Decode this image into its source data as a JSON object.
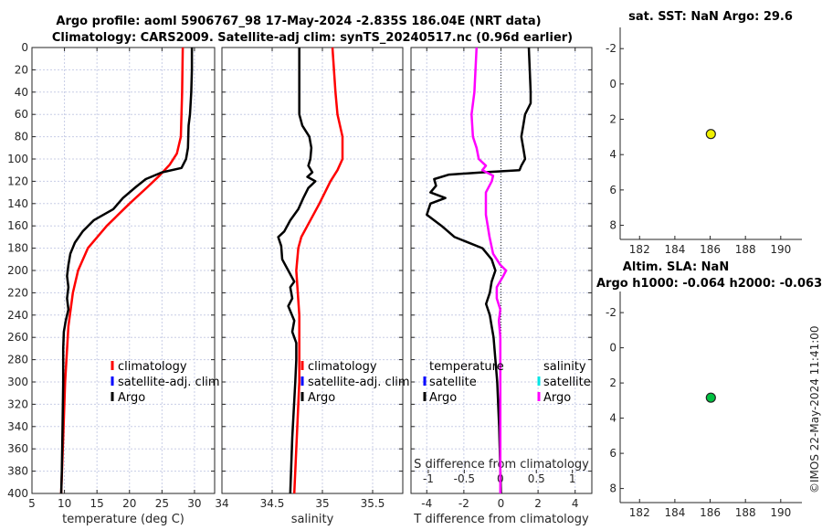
{
  "title_line1": "Argo profile: aoml 5906767_98 17-May-2024 -2.835S 186.04E (NRT data)",
  "title_line2": "Climatology: CARS2009. Satellite-adj clim: synTS_20240517.nc (0.96d earlier)",
  "sst_title": "sat. SST: NaN Argo: 29.6",
  "sla_title1": "Altim. SLA: NaN",
  "sla_title2": "Argo h1000: -0.064 h2000: -0.063",
  "copyright": "©IMOS 22-May-2024 11:41:00",
  "colors": {
    "climatology": "#ff0000",
    "satellite_adj": "#0000ff",
    "argo": "#000000",
    "sal_sat": "#00e5e5",
    "sal_argo": "#ff00ff",
    "sst_dot": "#f0f000",
    "sla_dot": "#00c040"
  },
  "chart_data": [
    {
      "type": "line",
      "id": "temperature",
      "xlabel": "temperature (deg C)",
      "ylabel": "",
      "xlim": [
        5,
        33.1
      ],
      "ylim": [
        400,
        0
      ],
      "xticks": [
        5,
        10,
        15,
        20,
        25,
        30
      ],
      "yticks": [
        0,
        20,
        40,
        60,
        80,
        100,
        120,
        140,
        160,
        180,
        200,
        220,
        240,
        260,
        280,
        300,
        320,
        340,
        360,
        380,
        400
      ],
      "show_ytick_labels": true,
      "grid": true,
      "legend": [
        "climatology",
        "satellite-adj. clim",
        "Argo"
      ],
      "series": [
        {
          "name": "climatology",
          "color": "#ff0000",
          "depth": [
            0,
            40,
            80,
            95,
            105,
            115,
            125,
            140,
            160,
            180,
            200,
            220,
            250,
            300,
            350,
            400
          ],
          "values": [
            28.2,
            28.1,
            27.9,
            27.3,
            26.2,
            24.6,
            22.8,
            20.0,
            16.5,
            13.6,
            12.1,
            11.3,
            10.6,
            10.1,
            9.8,
            9.5
          ]
        },
        {
          "name": "Argo",
          "color": "#000000",
          "depth": [
            0,
            20,
            40,
            60,
            70,
            90,
            100,
            108,
            112,
            118,
            125,
            135,
            145,
            155,
            165,
            175,
            185,
            195,
            205,
            215,
            225,
            235,
            245,
            255,
            270,
            300,
            340,
            380,
            400
          ],
          "values": [
            29.6,
            29.6,
            29.5,
            29.3,
            29.1,
            29.0,
            28.7,
            28.0,
            25.0,
            22.5,
            21.0,
            19.0,
            17.5,
            14.5,
            12.8,
            11.6,
            10.9,
            10.6,
            10.4,
            10.6,
            10.4,
            10.6,
            10.2,
            9.9,
            9.8,
            9.8,
            9.7,
            9.6,
            9.5
          ]
        }
      ]
    },
    {
      "type": "line",
      "id": "salinity",
      "xlabel": "salinity",
      "ylabel": "",
      "xlim": [
        34,
        35.8
      ],
      "ylim": [
        400,
        0
      ],
      "xticks": [
        34,
        34.5,
        35,
        35.5
      ],
      "yticks": [
        0,
        20,
        40,
        60,
        80,
        100,
        120,
        140,
        160,
        180,
        200,
        220,
        240,
        260,
        280,
        300,
        320,
        340,
        360,
        380,
        400
      ],
      "show_ytick_labels": false,
      "grid": true,
      "legend": [
        "climatology",
        "satellite-adj. clim",
        "Argo"
      ],
      "series": [
        {
          "name": "climatology",
          "color": "#ff0000",
          "depth": [
            0,
            40,
            60,
            80,
            100,
            110,
            120,
            140,
            160,
            170,
            180,
            200,
            240,
            300,
            400
          ],
          "values": [
            35.1,
            35.13,
            35.15,
            35.2,
            35.2,
            35.15,
            35.08,
            34.97,
            34.85,
            34.79,
            34.76,
            34.74,
            34.77,
            34.77,
            34.72
          ]
        },
        {
          "name": "Argo",
          "color": "#000000",
          "depth": [
            0,
            40,
            60,
            70,
            80,
            90,
            100,
            106,
            112,
            116,
            120,
            126,
            135,
            145,
            155,
            165,
            170,
            178,
            190,
            200,
            210,
            215,
            225,
            232,
            245,
            255,
            265,
            280,
            300,
            350,
            400
          ],
          "values": [
            34.77,
            34.77,
            34.77,
            34.8,
            34.87,
            34.89,
            34.88,
            34.86,
            34.9,
            34.85,
            34.93,
            34.86,
            34.81,
            34.76,
            34.68,
            34.62,
            34.56,
            34.59,
            34.6,
            34.66,
            34.72,
            34.68,
            34.7,
            34.66,
            34.72,
            34.7,
            34.74,
            34.74,
            34.73,
            34.7,
            34.68
          ]
        }
      ]
    },
    {
      "type": "line",
      "id": "difference",
      "xlabel": "T difference from climatology",
      "x2label": "S difference from climatology",
      "xlim": [
        -4.85,
        4.9
      ],
      "x2lim": [
        -1.24,
        1.27
      ],
      "ylim": [
        400,
        0
      ],
      "xticks": [
        -4,
        -2,
        0,
        2,
        4
      ],
      "x2ticks": [
        -1,
        -0.5,
        0,
        0.5,
        1
      ],
      "yticks": [
        0,
        20,
        40,
        60,
        80,
        100,
        120,
        140,
        160,
        180,
        200,
        220,
        240,
        260,
        280,
        300,
        320,
        340,
        360,
        380,
        400
      ],
      "show_ytick_labels": false,
      "grid": true,
      "legend_headers": [
        "temperature",
        "salinity"
      ],
      "legend": [
        "satellite",
        "Argo",
        "satellite",
        "Argo"
      ],
      "series": [
        {
          "name": "T Argo",
          "axis": "x",
          "color": "#000000",
          "depth": [
            0,
            40,
            50,
            60,
            70,
            80,
            90,
            100,
            106,
            110,
            112,
            114,
            118,
            124,
            130,
            135,
            140,
            145,
            150,
            160,
            170,
            180,
            190,
            200,
            210,
            220,
            230,
            240,
            250,
            260,
            280,
            300,
            340,
            400
          ],
          "values": [
            1.5,
            1.6,
            1.6,
            1.3,
            1.2,
            1.1,
            1.2,
            1.3,
            1.1,
            1.0,
            -1.0,
            -2.8,
            -3.6,
            -3.5,
            -3.8,
            -3.0,
            -3.8,
            -3.9,
            -4.0,
            -3.2,
            -2.5,
            -1.0,
            -0.5,
            -0.3,
            -0.5,
            -0.6,
            -0.8,
            -0.6,
            -0.5,
            -0.4,
            -0.3,
            -0.2,
            -0.1,
            0.0
          ]
        },
        {
          "name": "S Argo",
          "axis": "x2",
          "color": "#ff00ff",
          "depth": [
            0,
            40,
            60,
            80,
            90,
            100,
            106,
            110,
            115,
            120,
            130,
            150,
            170,
            185,
            195,
            200,
            205,
            215,
            225,
            235,
            245,
            260,
            300,
            400
          ],
          "values": [
            -0.33,
            -0.36,
            -0.4,
            -0.38,
            -0.33,
            -0.3,
            -0.2,
            -0.25,
            -0.1,
            -0.12,
            -0.2,
            -0.2,
            -0.15,
            -0.1,
            0.0,
            0.08,
            0.04,
            -0.05,
            -0.05,
            0.0,
            -0.02,
            0.0,
            0.0,
            0.0
          ]
        }
      ]
    },
    {
      "type": "scatter",
      "id": "sst",
      "xlim": [
        180.9,
        191.2
      ],
      "ylim": [
        -3.2,
        8.8
      ],
      "xticks": [
        182,
        184,
        186,
        188,
        190
      ],
      "yticks": [
        -2,
        0,
        2,
        4,
        6,
        8
      ],
      "points": [
        {
          "x": 186.04,
          "y": -2.835,
          "plot_y": 2.835,
          "color": "#f0f000"
        }
      ]
    },
    {
      "type": "scatter",
      "id": "sla",
      "xlim": [
        180.9,
        191.2
      ],
      "ylim": [
        -3.2,
        8.8
      ],
      "xticks": [
        182,
        184,
        186,
        188,
        190
      ],
      "yticks": [
        -2,
        0,
        2,
        4,
        6,
        8
      ],
      "points": [
        {
          "x": 186.04,
          "y": -2.835,
          "plot_y": 2.835,
          "color": "#00c040"
        }
      ]
    }
  ]
}
